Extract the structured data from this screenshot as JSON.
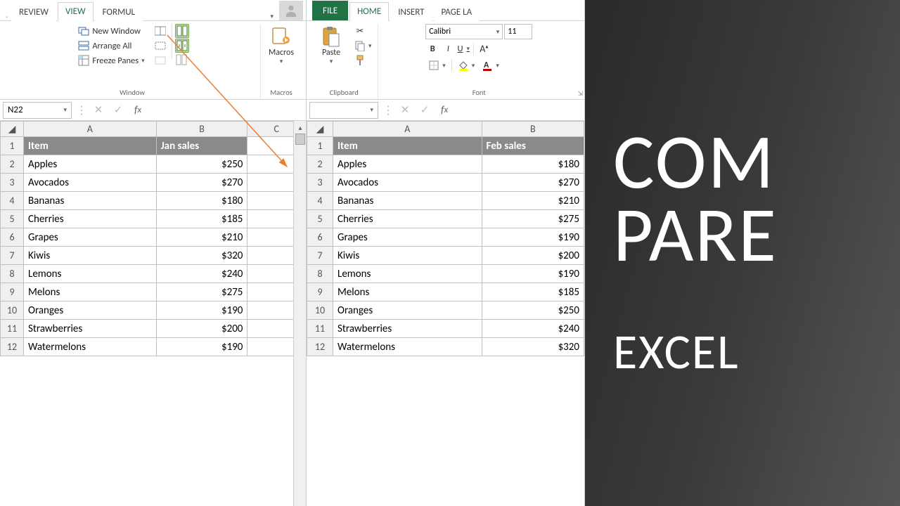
{
  "banner": {
    "line1": "COM",
    "line2": "PARE",
    "line3": "EXCEL"
  },
  "left": {
    "tabs": [
      "REVIEW",
      "VIEW",
      "FORMUL"
    ],
    "active_tab": 1,
    "window_group": {
      "label": "Window",
      "new_window": "New Window",
      "arrange_all": "Arrange All",
      "freeze_panes": "Freeze Panes"
    },
    "macros_group": {
      "label": "Macros",
      "macros": "Macros"
    },
    "namebox": "N22",
    "columns": [
      "A",
      "B",
      "C"
    ],
    "header_row": {
      "item": "Item",
      "sales": "Jan sales"
    },
    "rows": [
      {
        "n": 2,
        "item": "Apples",
        "val": "$250"
      },
      {
        "n": 3,
        "item": "Avocados",
        "val": "$270"
      },
      {
        "n": 4,
        "item": "Bananas",
        "val": "$180"
      },
      {
        "n": 5,
        "item": "Cherries",
        "val": "$185"
      },
      {
        "n": 6,
        "item": "Grapes",
        "val": "$210"
      },
      {
        "n": 7,
        "item": "Kiwis",
        "val": "$320"
      },
      {
        "n": 8,
        "item": "Lemons",
        "val": "$240"
      },
      {
        "n": 9,
        "item": "Melons",
        "val": "$275"
      },
      {
        "n": 10,
        "item": "Oranges",
        "val": "$190"
      },
      {
        "n": 11,
        "item": "Strawberries",
        "val": "$200"
      },
      {
        "n": 12,
        "item": "Watermelons",
        "val": "$190"
      }
    ],
    "colors": {
      "excel_green": "#217346",
      "highlight": "#c5e0b4",
      "arrow": "#ed7d31"
    }
  },
  "right": {
    "tabs": [
      "FILE",
      "HOME",
      "INSERT",
      "PAGE LA"
    ],
    "active_tab": 1,
    "clipboard_group": {
      "label": "Clipboard",
      "paste": "Paste"
    },
    "font_group": {
      "label": "Font",
      "font_name": "Calibri",
      "font_size": "11"
    },
    "namebox": "",
    "columns": [
      "A",
      "B"
    ],
    "header_row": {
      "item": "Item",
      "sales": "Feb sales"
    },
    "rows": [
      {
        "n": 2,
        "item": "Apples",
        "val": "$180"
      },
      {
        "n": 3,
        "item": "Avocados",
        "val": "$270"
      },
      {
        "n": 4,
        "item": "Bananas",
        "val": "$210"
      },
      {
        "n": 5,
        "item": "Cherries",
        "val": "$275"
      },
      {
        "n": 6,
        "item": "Grapes",
        "val": "$190"
      },
      {
        "n": 7,
        "item": "Kiwis",
        "val": "$200"
      },
      {
        "n": 8,
        "item": "Lemons",
        "val": "$190"
      },
      {
        "n": 9,
        "item": "Melons",
        "val": "$185"
      },
      {
        "n": 10,
        "item": "Oranges",
        "val": "$250"
      },
      {
        "n": 11,
        "item": "Strawberries",
        "val": "$240"
      },
      {
        "n": 12,
        "item": "Watermelons",
        "val": "$320"
      }
    ]
  }
}
